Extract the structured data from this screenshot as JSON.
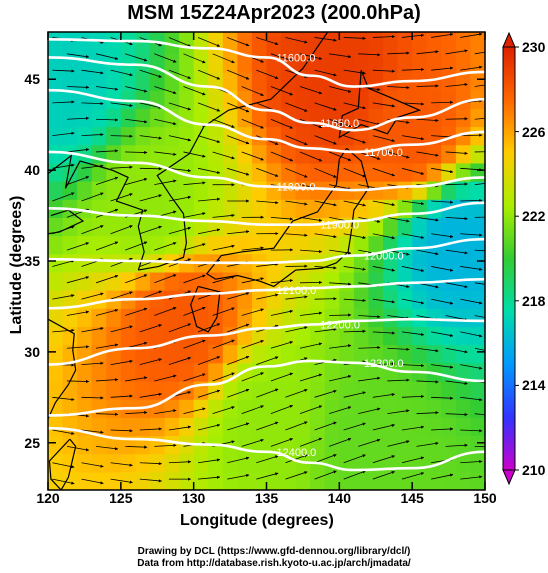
{
  "title": "MSM 15Z24Apr2023 (200.0hPa)",
  "chart_data": {
    "type": "heatmap",
    "title": "MSM 15Z24Apr2023 (200.0hPa)",
    "xlabel": "Longitude (degrees)",
    "ylabel": "Latitude  (degrees)",
    "xlim": [
      120,
      150
    ],
    "ylim": [
      22.4,
      47.6
    ],
    "xticks": [
      "120",
      "125",
      "130",
      "135",
      "140",
      "145",
      "150"
    ],
    "yticks": [
      "25",
      "30",
      "35",
      "40",
      "45"
    ],
    "colorbar": {
      "min": 210,
      "max": 230,
      "ticks": [
        "210",
        "214",
        "218",
        "222",
        "226",
        "230"
      ],
      "colors": [
        "#cc00cc",
        "#3333ff",
        "#0099ff",
        "#00ddaa",
        "#33cc33",
        "#aaee00",
        "#ffcc00",
        "#ff6600",
        "#dd2200"
      ]
    },
    "contours": [
      {
        "label": "11600.0",
        "lon": [
          120,
          126,
          131,
          135,
          138,
          141,
          145,
          150
        ],
        "lat": [
          47.2,
          47.1,
          46.7,
          46.2,
          45.2,
          44.6,
          44.9,
          45.4
        ]
      },
      {
        "label": "11650.0",
        "lon": [
          120,
          126,
          131,
          135,
          138,
          141,
          145,
          150
        ],
        "lat": [
          46.2,
          45.8,
          44.6,
          43.3,
          42.6,
          42.2,
          42.9,
          43.9
        ]
      },
      {
        "label": "11700.0",
        "lon": [
          120,
          126,
          131,
          135,
          138,
          141,
          145,
          150
        ],
        "lat": [
          44.4,
          43.8,
          42.5,
          41.7,
          41.2,
          41.0,
          41.4,
          42.1
        ]
      },
      {
        "label": "11800.0",
        "lon": [
          120,
          126,
          131,
          135,
          138,
          141,
          145,
          150
        ],
        "lat": [
          41.0,
          40.4,
          39.6,
          39.1,
          39.0,
          38.9,
          39.1,
          39.6
        ]
      },
      {
        "label": "11900.0",
        "lon": [
          120,
          126,
          131,
          135,
          138,
          141,
          145,
          150
        ],
        "lat": [
          37.9,
          37.5,
          37.2,
          37.0,
          37.0,
          37.2,
          37.6,
          38.2
        ]
      },
      {
        "label": "12000.0",
        "lon": [
          120,
          126,
          131,
          135,
          138,
          141,
          145,
          150
        ],
        "lat": [
          35.1,
          35.0,
          34.9,
          34.9,
          35.0,
          35.3,
          35.7,
          36.2
        ]
      },
      {
        "label": "12100.0",
        "lon": [
          120,
          126,
          131,
          135,
          138,
          141,
          145,
          150
        ],
        "lat": [
          32.4,
          32.9,
          33.2,
          33.4,
          33.5,
          33.6,
          33.8,
          34.0
        ]
      },
      {
        "label": "12200.0",
        "lon": [
          120,
          126,
          131,
          135,
          138,
          141,
          145,
          150
        ],
        "lat": [
          29.3,
          30.2,
          30.9,
          31.3,
          31.5,
          31.7,
          31.8,
          31.7
        ]
      },
      {
        "label": "12300.0",
        "lon": [
          120,
          126,
          131,
          135,
          138,
          141,
          145,
          150
        ],
        "lat": [
          26.5,
          26.9,
          28.2,
          29.2,
          29.5,
          29.4,
          28.9,
          28.4
        ]
      },
      {
        "label": "12400.0",
        "lon": [
          120,
          126,
          131,
          135,
          138,
          141,
          145,
          150
        ],
        "lat": [
          25.8,
          25.2,
          24.9,
          24.5,
          23.9,
          23.5,
          23.6,
          24.5
        ]
      }
    ],
    "temperature_regions": [
      {
        "lon": 121,
        "lat": 44.5,
        "value": 217
      },
      {
        "lon": 140,
        "lat": 45,
        "value": 229
      },
      {
        "lon": 145,
        "lat": 42,
        "value": 228
      },
      {
        "lon": 129,
        "lat": 31.5,
        "value": 228
      },
      {
        "lon": 148,
        "lat": 36,
        "value": 216
      },
      {
        "lon": 127,
        "lat": 38,
        "value": 222
      },
      {
        "lon": 135,
        "lat": 26,
        "value": 222
      },
      {
        "lon": 142,
        "lat": 25,
        "value": 221
      }
    ]
  },
  "credits": {
    "line1": "Drawing by DCL (https://www.gfd-dennou.org/library/dcl/)",
    "line2": "Data from http://database.rish.kyoto-u.ac.jp/arch/jmadata/"
  }
}
